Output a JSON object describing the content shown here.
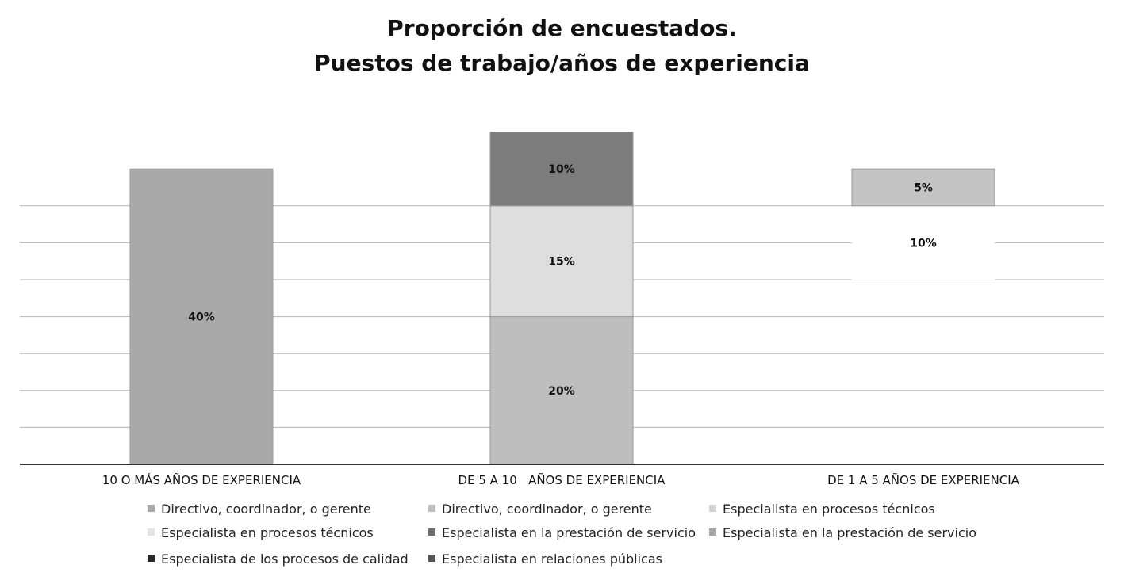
{
  "chart_data": {
    "type": "bar",
    "stacked": true,
    "title": [
      "Proporción de encuestados.",
      "Puestos de trabajo/años de experiencia"
    ],
    "categories": [
      "10 O MÁS AÑOS DE EXPERIENCIA",
      "DE 5 A 10   AÑOS DE EXPERIENCIA",
      "DE 1 A 5 AÑOS DE EXPERIENCIA"
    ],
    "ylim": [
      0,
      50
    ],
    "grid": true,
    "legend_position": "bottom",
    "segments": [
      {
        "category": 0,
        "value": 40,
        "label": "40%",
        "color": "#a9a9a9",
        "bottom": 0
      },
      {
        "category": 1,
        "value": 20,
        "label": "20%",
        "color": "#bebebe",
        "bottom": 0
      },
      {
        "category": 1,
        "value": 15,
        "label": "15%",
        "color": "#dedede",
        "bottom": 20
      },
      {
        "category": 1,
        "value": 10,
        "label": "10%",
        "color": "#7c7c7c",
        "bottom": 35
      },
      {
        "category": 2,
        "value": 10,
        "label": "10%",
        "color": "#ffffff",
        "bottom": 25
      },
      {
        "category": 2,
        "value": 5,
        "label": "5%",
        "color": "#c3c3c3",
        "bottom": 35
      }
    ],
    "legend": [
      {
        "name": "Directivo, coordinador, o gerente",
        "color": "#a9a9a9"
      },
      {
        "name": "Directivo, coordinador, o gerente",
        "color": "#bebebe"
      },
      {
        "name": "Especialista en procesos técnicos",
        "color": "#d2d2d2"
      },
      {
        "name": "Especialista en procesos técnicos",
        "color": "#e3e3e3"
      },
      {
        "name": "Especialista en la prestación de servicio",
        "color": "#6e6e6e"
      },
      {
        "name": "Especialista en la prestación de servicio",
        "color": "#a5a5a5"
      },
      {
        "name": "Especialista de los procesos de calidad",
        "color": "#2a2a2a"
      },
      {
        "name": "Especialista en relaciones públicas",
        "color": "#555555"
      }
    ]
  }
}
